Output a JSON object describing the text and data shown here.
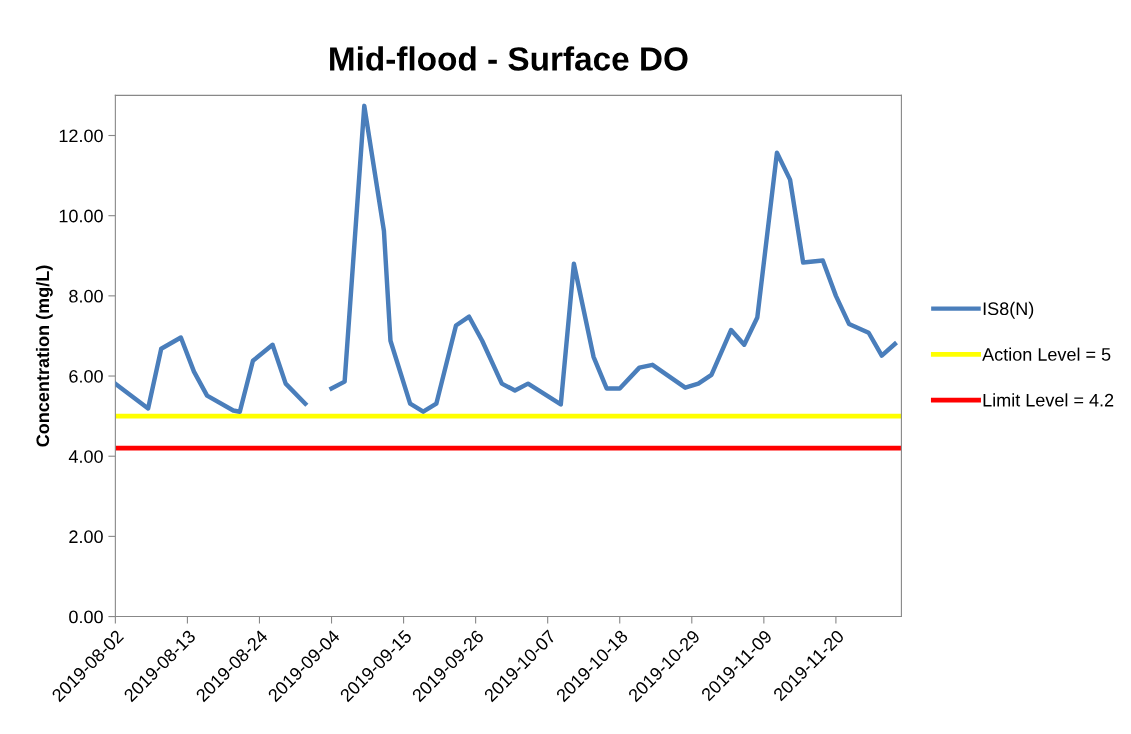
{
  "chart_data": {
    "type": "line",
    "title": "Mid-flood - Surface DO",
    "ylabel": "Concentration (mg/L)",
    "x": [
      "2019-08-02",
      "2019-08-07",
      "2019-08-09",
      "2019-08-12",
      "2019-08-14",
      "2019-08-16",
      "2019-08-20",
      "2019-08-21",
      "2019-08-23",
      "2019-08-26",
      "2019-08-28",
      "2019-08-31",
      "2019-09-01",
      "2019-09-04",
      "2019-09-06",
      "2019-09-09",
      "2019-09-12",
      "2019-09-13",
      "2019-09-16",
      "2019-09-18",
      "2019-09-20",
      "2019-09-23",
      "2019-09-25",
      "2019-09-27",
      "2019-09-30",
      "2019-10-02",
      "2019-10-04",
      "2019-10-09",
      "2019-10-11",
      "2019-10-14",
      "2019-10-16",
      "2019-10-18",
      "2019-10-21",
      "2019-10-23",
      "2019-10-28",
      "2019-10-30",
      "2019-11-01",
      "2019-11-04",
      "2019-11-06",
      "2019-11-08",
      "2019-11-11",
      "2019-11-13",
      "2019-11-15",
      "2019-11-18",
      "2019-11-20",
      "2019-11-22",
      "2019-11-25",
      "2019-11-27",
      "2019-11-29"
    ],
    "series": [
      {
        "name": "IS8(N)",
        "color": "#4a7ebb",
        "values": [
          5.81,
          5.19,
          6.68,
          6.96,
          6.11,
          5.51,
          5.14,
          5.11,
          6.38,
          6.78,
          5.81,
          5.31,
          null,
          5.69,
          5.86,
          12.74,
          9.62,
          6.88,
          5.31,
          5.11,
          5.31,
          7.26,
          7.48,
          6.88,
          5.81,
          5.64,
          5.81,
          5.29,
          8.8,
          6.48,
          5.69,
          5.69,
          6.21,
          6.28,
          5.71,
          5.81,
          6.03,
          7.15,
          6.78,
          7.46,
          11.57,
          10.9,
          8.83,
          8.88,
          8.0,
          7.3,
          7.08,
          6.51,
          6.8
        ]
      }
    ],
    "ref_lines": [
      {
        "axis": "y",
        "value": 5,
        "label": "Action Level = 5",
        "color": "#ffff00"
      },
      {
        "axis": "y",
        "value": 4.2,
        "label": "Limit Level = 4.2",
        "color": "#ff0000"
      }
    ],
    "xlim": [
      "2019-08-02",
      "2019-11-30"
    ],
    "xticks": [
      "2019-08-02",
      "2019-08-13",
      "2019-08-24",
      "2019-09-04",
      "2019-09-15",
      "2019-09-26",
      "2019-10-07",
      "2019-10-18",
      "2019-10-29",
      "2019-11-09",
      "2019-11-20"
    ],
    "ylim": [
      0,
      13
    ],
    "yticks": [
      {
        "value": 0,
        "label": "0.00"
      },
      {
        "value": 2,
        "label": "2.00"
      },
      {
        "value": 4,
        "label": "4.00"
      },
      {
        "value": 6,
        "label": "6.00"
      },
      {
        "value": 8,
        "label": "8.00"
      },
      {
        "value": 10,
        "label": "10.00"
      },
      {
        "value": 12,
        "label": "12.00"
      }
    ],
    "grid": false,
    "legend": "right",
    "marker": "none",
    "line_style": "solid"
  }
}
